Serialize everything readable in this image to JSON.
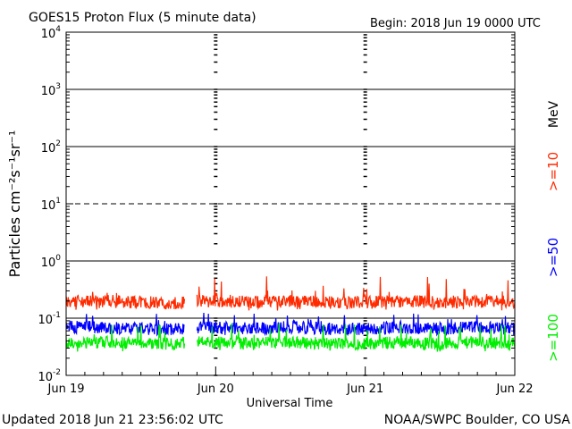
{
  "chart_data": {
    "type": "line",
    "title": "GOES15 Proton Flux (5 minute data)",
    "begin_label": "Begin: 2018 Jun 19 0000 UTC",
    "xlabel": "Universal Time",
    "ylabel": "Particles cm⁻²s⁻¹sr⁻¹",
    "yscale": "log",
    "ylim": [
      0.01,
      10000
    ],
    "ytick_labels": [
      {
        "base": "10",
        "exp": "4",
        "value": 10000
      },
      {
        "base": "10",
        "exp": "3",
        "value": 1000
      },
      {
        "base": "10",
        "exp": "2",
        "value": 100
      },
      {
        "base": "10",
        "exp": "1",
        "value": 10
      },
      {
        "base": "10",
        "exp": "0",
        "value": 1
      },
      {
        "base": "10",
        "exp": "-1",
        "value": 0.1
      },
      {
        "base": "10",
        "exp": "-2",
        "value": 0.01
      }
    ],
    "xlim": [
      "2018-06-19 00:00",
      "2018-06-22 00:00"
    ],
    "xtick_labels": [
      "Jun 19",
      "Jun 20",
      "Jun 21",
      "Jun 22"
    ],
    "reference_lines": [
      {
        "value": 1000,
        "style": "solid"
      },
      {
        "value": 100,
        "style": "solid"
      },
      {
        "value": 10,
        "style": "dashed"
      },
      {
        "value": 1,
        "style": "solid"
      },
      {
        "value": 0.1,
        "style": "solid"
      }
    ],
    "unit_label": "MeV",
    "data_gap": [
      "2018-06-19 19:00",
      "2018-06-19 21:00"
    ],
    "series": [
      {
        "name": ">=10",
        "color": "#ff2a00",
        "x": [
          "2018-06-19 00:00",
          "2018-06-19 06:00",
          "2018-06-19 12:00",
          "2018-06-19 18:00",
          "2018-06-19 21:00",
          "2018-06-20 06:00",
          "2018-06-20 12:00",
          "2018-06-20 18:00",
          "2018-06-21 00:00",
          "2018-06-21 06:00",
          "2018-06-21 12:00",
          "2018-06-21 18:00",
          "2018-06-22 00:00"
        ],
        "y": [
          0.2,
          0.2,
          0.19,
          0.18,
          0.2,
          0.19,
          0.2,
          0.19,
          0.19,
          0.2,
          0.19,
          0.2,
          0.19
        ],
        "min": 0.13,
        "max": 0.6
      },
      {
        "name": ">=50",
        "color": "#0000ff",
        "x": [
          "2018-06-19 00:00",
          "2018-06-19 06:00",
          "2018-06-19 12:00",
          "2018-06-19 18:00",
          "2018-06-19 21:00",
          "2018-06-20 06:00",
          "2018-06-20 12:00",
          "2018-06-20 18:00",
          "2018-06-21 00:00",
          "2018-06-21 06:00",
          "2018-06-21 12:00",
          "2018-06-21 18:00",
          "2018-06-22 00:00"
        ],
        "y": [
          0.07,
          0.07,
          0.065,
          0.065,
          0.07,
          0.065,
          0.07,
          0.065,
          0.065,
          0.07,
          0.065,
          0.07,
          0.065
        ],
        "min": 0.05,
        "max": 0.13
      },
      {
        "name": ">=100",
        "color": "#00ee00",
        "x": [
          "2018-06-19 00:00",
          "2018-06-19 06:00",
          "2018-06-19 12:00",
          "2018-06-19 18:00",
          "2018-06-19 21:00",
          "2018-06-20 06:00",
          "2018-06-20 12:00",
          "2018-06-20 18:00",
          "2018-06-21 00:00",
          "2018-06-21 06:00",
          "2018-06-21 12:00",
          "2018-06-21 18:00",
          "2018-06-22 00:00"
        ],
        "y": [
          0.038,
          0.038,
          0.036,
          0.036,
          0.038,
          0.036,
          0.038,
          0.036,
          0.036,
          0.038,
          0.036,
          0.038,
          0.036
        ],
        "min": 0.025,
        "max": 0.09
      }
    ]
  },
  "footer": {
    "updated": "Updated 2018 Jun 21 23:56:02 UTC",
    "source": "NOAA/SWPC Boulder, CO USA"
  }
}
